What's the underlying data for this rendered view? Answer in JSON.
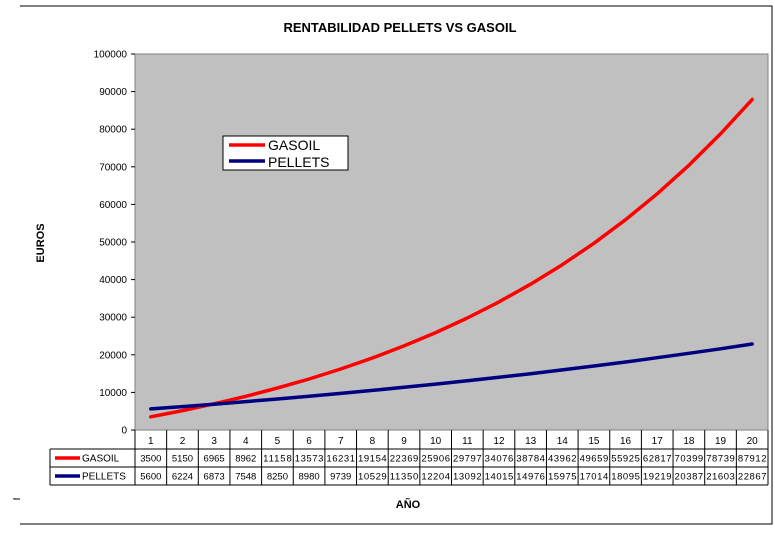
{
  "chart_data": {
    "type": "line",
    "title": "RENTABILIDAD PELLETS VS GASOIL",
    "xlabel": "AÑO",
    "ylabel": "EUROS",
    "categories": [
      "1",
      "2",
      "3",
      "4",
      "5",
      "6",
      "7",
      "8",
      "9",
      "10",
      "11",
      "12",
      "13",
      "14",
      "15",
      "16",
      "17",
      "18",
      "19",
      "20"
    ],
    "ylim": [
      0,
      100000
    ],
    "yticks": [
      0,
      10000,
      20000,
      30000,
      40000,
      50000,
      60000,
      70000,
      80000,
      90000,
      100000
    ],
    "ytick_labels": [
      "0",
      "10000",
      "20000",
      "30000",
      "40000",
      "50000",
      "60000",
      "70000",
      "80000",
      "90000",
      "100000"
    ],
    "grid": false,
    "plot_background": "#c0c0c0",
    "legend_position": "upper-left inside plot",
    "data_table": true,
    "series": [
      {
        "name": "GASOIL",
        "color": "#ff0000",
        "values": [
          3500,
          5150,
          6965,
          8962,
          11158,
          13573,
          16231,
          19154,
          22369,
          25906,
          29797,
          34076,
          38784,
          43962,
          49659,
          55925,
          62817,
          70399,
          78739,
          87912
        ]
      },
      {
        "name": "PELLETS",
        "color": "#000080",
        "values": [
          5600,
          6224,
          6873,
          7548,
          8250,
          8980,
          9739,
          10529,
          11350,
          12204,
          13092,
          14015,
          14976,
          15975,
          17014,
          18095,
          19219,
          20387,
          21603,
          22867
        ]
      }
    ]
  }
}
